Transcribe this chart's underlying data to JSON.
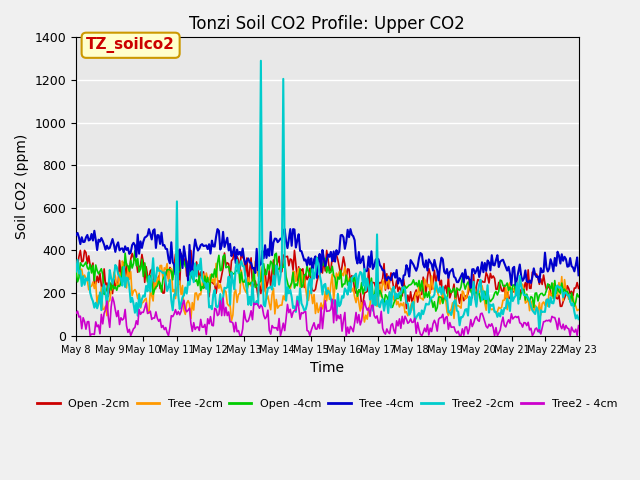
{
  "title": "Tonzi Soil CO2 Profile: Upper CO2",
  "xlabel": "Time",
  "ylabel": "Soil CO2 (ppm)",
  "ylim": [
    0,
    1400
  ],
  "yticks": [
    0,
    200,
    400,
    600,
    800,
    1000,
    1200,
    1400
  ],
  "series": [
    {
      "label": "Open -2cm",
      "color": "#cc0000"
    },
    {
      "label": "Tree -2cm",
      "color": "#ff9900"
    },
    {
      "label": "Open -4cm",
      "color": "#00cc00"
    },
    {
      "label": "Tree -4cm",
      "color": "#0000cc"
    },
    {
      "label": "Tree2 -2cm",
      "color": "#00cccc"
    },
    {
      "label": "Tree2 - 4cm",
      "color": "#cc00cc"
    }
  ],
  "n_points": 360,
  "xtick_labels": [
    "May 8",
    "May 9",
    "May 10",
    "May 11",
    "May 12",
    "May 13",
    "May 14",
    "May 15",
    "May 16",
    "May 17",
    "May 18",
    "May 19",
    "May 20",
    "May 21",
    "May 22",
    "May 23"
  ],
  "annotation_label": "TZ_soilco2",
  "annotation_color": "#cc0000",
  "annotation_bg": "#ffffcc",
  "annotation_border": "#cc9900"
}
